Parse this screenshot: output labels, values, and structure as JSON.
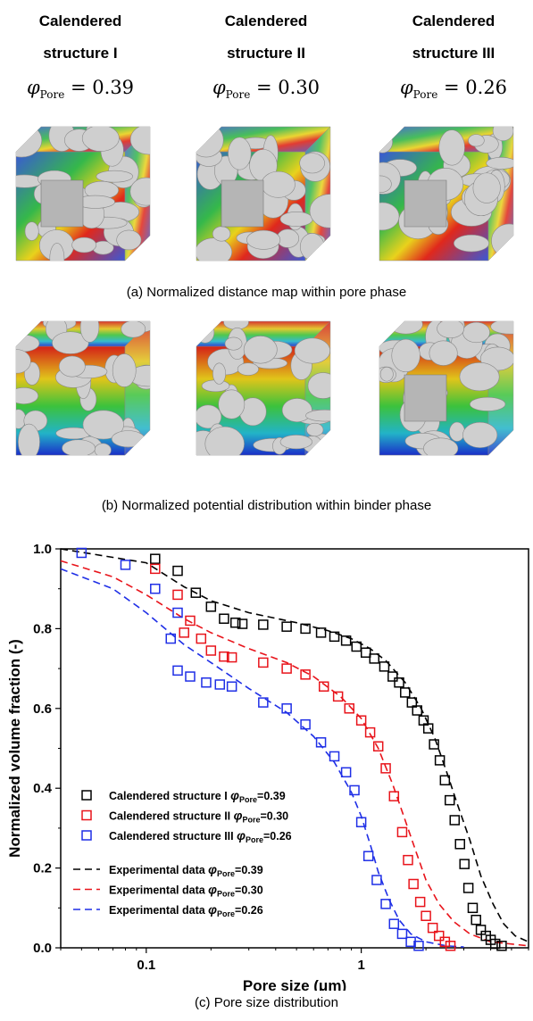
{
  "columns": [
    {
      "title_line1": "Calendered",
      "title_line2": "structure I",
      "phi_label": "Pore",
      "phi_value": "0.39"
    },
    {
      "title_line1": "Calendered",
      "title_line2": "structure II",
      "phi_label": "Pore",
      "phi_value": "0.30"
    },
    {
      "title_line1": "Calendered",
      "title_line2": "structure III",
      "phi_label": "Pore",
      "phi_value": "0.26"
    }
  ],
  "captions": {
    "a": "(a)  Normalized distance map within pore phase",
    "b": "(b)  Normalized potential distribution within binder phase",
    "c": "(c)  Pore size distribution"
  },
  "colors": {
    "black": "#000000",
    "red": "#e8141b",
    "blue": "#1f2fe6",
    "particle": "#c9c9c9",
    "pore_blue": "#3a58d6",
    "pore_green": "#35b84a",
    "pore_red": "#e0281c",
    "pore_yellow": "#e9d21c"
  },
  "chart_data": {
    "type": "scatter",
    "xlabel": "Pore size (μm)",
    "ylabel": "Normalized volume fraction (-)",
    "xscale": "log",
    "xlim": [
      0.04,
      6
    ],
    "ylim": [
      0,
      1.0
    ],
    "xticks": [
      "0.1",
      "1"
    ],
    "yticks": [
      "0.0",
      "0.2",
      "0.4",
      "0.6",
      "0.8",
      "1.0"
    ],
    "legend_position": "bottom-left",
    "series": [
      {
        "name": "Calendered structure I",
        "phi": "=0.39",
        "color": "#000000",
        "marker": "square",
        "points": [
          [
            0.11,
            0.975
          ],
          [
            0.14,
            0.945
          ],
          [
            0.17,
            0.89
          ],
          [
            0.2,
            0.855
          ],
          [
            0.23,
            0.825
          ],
          [
            0.26,
            0.815
          ],
          [
            0.28,
            0.812
          ],
          [
            0.35,
            0.81
          ],
          [
            0.45,
            0.805
          ],
          [
            0.55,
            0.8
          ],
          [
            0.65,
            0.79
          ],
          [
            0.75,
            0.78
          ],
          [
            0.85,
            0.77
          ],
          [
            0.95,
            0.755
          ],
          [
            1.05,
            0.74
          ],
          [
            1.15,
            0.725
          ],
          [
            1.28,
            0.705
          ],
          [
            1.4,
            0.68
          ],
          [
            1.5,
            0.665
          ],
          [
            1.6,
            0.64
          ],
          [
            1.72,
            0.615
          ],
          [
            1.82,
            0.595
          ],
          [
            1.95,
            0.57
          ],
          [
            2.05,
            0.55
          ],
          [
            2.18,
            0.51
          ],
          [
            2.32,
            0.47
          ],
          [
            2.45,
            0.42
          ],
          [
            2.58,
            0.37
          ],
          [
            2.72,
            0.32
          ],
          [
            2.88,
            0.26
          ],
          [
            3.02,
            0.21
          ],
          [
            3.15,
            0.15
          ],
          [
            3.3,
            0.1
          ],
          [
            3.42,
            0.07
          ],
          [
            3.6,
            0.045
          ],
          [
            3.8,
            0.03
          ],
          [
            4.0,
            0.02
          ],
          [
            4.2,
            0.01
          ],
          [
            4.5,
            0.005
          ]
        ]
      },
      {
        "name": "Calendered structure II",
        "phi": "=0.30",
        "color": "#e8141b",
        "marker": "square",
        "points": [
          [
            0.11,
            0.95
          ],
          [
            0.14,
            0.885
          ],
          [
            0.16,
            0.82
          ],
          [
            0.15,
            0.79
          ],
          [
            0.18,
            0.775
          ],
          [
            0.2,
            0.745
          ],
          [
            0.23,
            0.73
          ],
          [
            0.25,
            0.728
          ],
          [
            0.35,
            0.715
          ],
          [
            0.45,
            0.7
          ],
          [
            0.55,
            0.685
          ],
          [
            0.67,
            0.655
          ],
          [
            0.78,
            0.63
          ],
          [
            0.88,
            0.6
          ],
          [
            1.0,
            0.57
          ],
          [
            1.1,
            0.54
          ],
          [
            1.2,
            0.505
          ],
          [
            1.3,
            0.45
          ],
          [
            1.42,
            0.38
          ],
          [
            1.55,
            0.29
          ],
          [
            1.65,
            0.22
          ],
          [
            1.75,
            0.16
          ],
          [
            1.88,
            0.115
          ],
          [
            2.0,
            0.08
          ],
          [
            2.15,
            0.05
          ],
          [
            2.3,
            0.03
          ],
          [
            2.45,
            0.015
          ],
          [
            2.6,
            0.005
          ]
        ]
      },
      {
        "name": "Calendered structure III",
        "phi": "=0.26",
        "color": "#1f2fe6",
        "marker": "square",
        "points": [
          [
            0.05,
            0.99
          ],
          [
            0.08,
            0.96
          ],
          [
            0.11,
            0.9
          ],
          [
            0.14,
            0.84
          ],
          [
            0.13,
            0.775
          ],
          [
            0.14,
            0.695
          ],
          [
            0.16,
            0.68
          ],
          [
            0.19,
            0.665
          ],
          [
            0.22,
            0.66
          ],
          [
            0.25,
            0.655
          ],
          [
            0.35,
            0.615
          ],
          [
            0.45,
            0.6
          ],
          [
            0.55,
            0.56
          ],
          [
            0.65,
            0.515
          ],
          [
            0.75,
            0.48
          ],
          [
            0.85,
            0.44
          ],
          [
            0.93,
            0.395
          ],
          [
            1.0,
            0.315
          ],
          [
            1.08,
            0.23
          ],
          [
            1.18,
            0.17
          ],
          [
            1.3,
            0.11
          ],
          [
            1.42,
            0.06
          ],
          [
            1.55,
            0.035
          ],
          [
            1.7,
            0.015
          ],
          [
            1.85,
            0.005
          ]
        ]
      },
      {
        "name": "Experimental data",
        "phi": "=0.39",
        "color": "#000000",
        "line": "dashed",
        "points": [
          [
            0.04,
            1.0
          ],
          [
            0.1,
            0.965
          ],
          [
            0.15,
            0.905
          ],
          [
            0.2,
            0.87
          ],
          [
            0.3,
            0.84
          ],
          [
            0.5,
            0.815
          ],
          [
            0.7,
            0.795
          ],
          [
            0.9,
            0.775
          ],
          [
            1.1,
            0.75
          ],
          [
            1.3,
            0.72
          ],
          [
            1.6,
            0.665
          ],
          [
            1.9,
            0.6
          ],
          [
            2.2,
            0.525
          ],
          [
            2.5,
            0.44
          ],
          [
            2.8,
            0.36
          ],
          [
            3.2,
            0.27
          ],
          [
            3.6,
            0.18
          ],
          [
            4.1,
            0.11
          ],
          [
            4.6,
            0.06
          ],
          [
            5.2,
            0.03
          ],
          [
            6.0,
            0.015
          ]
        ]
      },
      {
        "name": "Experimental data",
        "phi": "=0.30",
        "color": "#e8141b",
        "line": "dashed",
        "points": [
          [
            0.04,
            0.97
          ],
          [
            0.07,
            0.93
          ],
          [
            0.1,
            0.885
          ],
          [
            0.15,
            0.825
          ],
          [
            0.2,
            0.79
          ],
          [
            0.3,
            0.75
          ],
          [
            0.45,
            0.715
          ],
          [
            0.6,
            0.68
          ],
          [
            0.8,
            0.63
          ],
          [
            1.0,
            0.575
          ],
          [
            1.2,
            0.5
          ],
          [
            1.4,
            0.41
          ],
          [
            1.6,
            0.32
          ],
          [
            1.8,
            0.24
          ],
          [
            2.0,
            0.17
          ],
          [
            2.3,
            0.11
          ],
          [
            2.7,
            0.065
          ],
          [
            3.2,
            0.035
          ],
          [
            4.0,
            0.015
          ],
          [
            6.0,
            0.005
          ]
        ]
      },
      {
        "name": "Experimental data",
        "phi": "=0.26",
        "color": "#1f2fe6",
        "line": "dashed",
        "points": [
          [
            0.04,
            0.95
          ],
          [
            0.07,
            0.9
          ],
          [
            0.1,
            0.84
          ],
          [
            0.15,
            0.76
          ],
          [
            0.2,
            0.715
          ],
          [
            0.3,
            0.65
          ],
          [
            0.45,
            0.59
          ],
          [
            0.6,
            0.53
          ],
          [
            0.75,
            0.465
          ],
          [
            0.9,
            0.39
          ],
          [
            1.0,
            0.33
          ],
          [
            1.1,
            0.26
          ],
          [
            1.2,
            0.19
          ],
          [
            1.35,
            0.12
          ],
          [
            1.5,
            0.07
          ],
          [
            1.7,
            0.035
          ],
          [
            2.0,
            0.015
          ],
          [
            2.5,
            0.005
          ],
          [
            3.0,
            0.002
          ]
        ]
      }
    ]
  }
}
